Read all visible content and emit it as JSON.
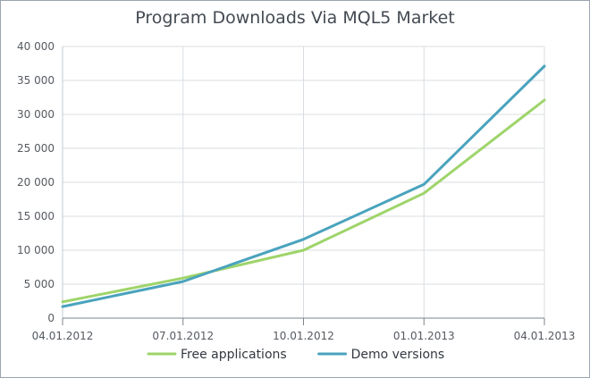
{
  "chart_data": {
    "type": "line",
    "title": "Program Downloads Via MQL5 Market",
    "xlabel": "",
    "ylabel": "",
    "categories": [
      "04.01.2012",
      "07.01.2012",
      "10.01.2012",
      "01.01.2013",
      "04.01.2013"
    ],
    "ylim": [
      0,
      40000
    ],
    "yticks": [
      0,
      5000,
      10000,
      15000,
      20000,
      25000,
      30000,
      35000,
      40000
    ],
    "ytick_labels": [
      "0",
      "5 000",
      "10 000",
      "15 000",
      "20 000",
      "25 000",
      "30 000",
      "35 000",
      "40 000"
    ],
    "grid": true,
    "legend_position": "bottom",
    "series": [
      {
        "name": "Free applications",
        "color": "#9ed46a",
        "values": [
          2400,
          5900,
          10000,
          18400,
          32100
        ]
      },
      {
        "name": "Demo versions",
        "color": "#4aa3bd",
        "values": [
          1700,
          5400,
          11600,
          19700,
          37100
        ]
      }
    ]
  }
}
